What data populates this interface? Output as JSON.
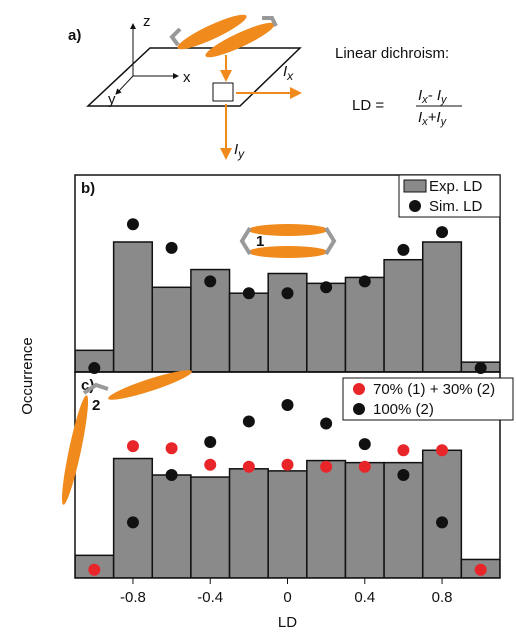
{
  "diagram": {
    "label": "a)",
    "axes": [
      "z",
      "x",
      "y"
    ],
    "intensity_x": {
      "symbol": "I",
      "sub": "x"
    },
    "intensity_y": {
      "symbol": "I",
      "sub": "y"
    },
    "caption": "Linear dichroism:",
    "lhs": "LD =",
    "numerator": [
      "I",
      "x",
      "- I",
      "y"
    ],
    "denominator": [
      "I",
      "x",
      "+I",
      "y"
    ]
  },
  "figure": {
    "y_label": "Occurrence"
  },
  "chart_data": [
    {
      "type": "histogram",
      "panel_label": "b)",
      "inset_label": "1",
      "bins": [
        -1.1,
        -0.9,
        -0.7,
        -0.5,
        -0.3,
        -0.1,
        0.1,
        0.3,
        0.5,
        0.7,
        0.9,
        1.1
      ],
      "series": [
        {
          "name": "Exp. LD",
          "color": "#8a8a8a",
          "values": [
            11,
            66,
            43,
            52,
            40,
            50,
            45,
            48,
            57,
            66,
            5
          ]
        },
        {
          "name": "Sim. LD",
          "color": "#111111",
          "kind": "scatter",
          "x": [
            -1,
            -0.8,
            -0.6,
            -0.4,
            -0.2,
            0,
            0.2,
            0.4,
            0.6,
            0.8,
            1
          ],
          "values": [
            2,
            75,
            63,
            46,
            40,
            40,
            43,
            46,
            62,
            71,
            2
          ]
        }
      ],
      "xlim": [
        -1.1,
        1.1
      ],
      "ylim": [
        0,
        100
      ]
    },
    {
      "type": "histogram",
      "panel_label": "c)",
      "inset_label": "2",
      "x_label": "LD",
      "bins": [
        -1.1,
        -0.9,
        -0.7,
        -0.5,
        -0.3,
        -0.1,
        0.1,
        0.3,
        0.5,
        0.7,
        0.9,
        1.1
      ],
      "series": [
        {
          "name": "Exp. LD",
          "color": "#8a8a8a",
          "values": [
            11,
            58,
            50,
            49,
            53,
            52,
            57,
            56,
            56,
            62,
            9
          ]
        },
        {
          "name": "70% (1) + 30% (2)",
          "color": "#e8262a",
          "kind": "scatter",
          "x": [
            -1,
            -0.8,
            -0.6,
            -0.4,
            -0.2,
            0,
            0.2,
            0.4,
            0.6,
            0.8,
            1
          ],
          "values": [
            4,
            64,
            63,
            55,
            54,
            55,
            54,
            54,
            62,
            62,
            4
          ]
        },
        {
          "name": "100% (2)",
          "color": "#111111",
          "kind": "scatter",
          "x": [
            -1,
            -0.8,
            -0.6,
            -0.4,
            -0.2,
            0,
            0.2,
            0.4,
            0.6,
            0.8,
            1
          ],
          "values": [
            null,
            27,
            50,
            66,
            76,
            84,
            75,
            65,
            50,
            27,
            null
          ]
        }
      ],
      "xlim": [
        -1.1,
        1.1
      ],
      "ylim": [
        0,
        100
      ],
      "xticks": [
        -0.8,
        -0.4,
        0,
        0.4,
        0.8
      ],
      "legend_series": [
        1,
        2
      ]
    }
  ]
}
